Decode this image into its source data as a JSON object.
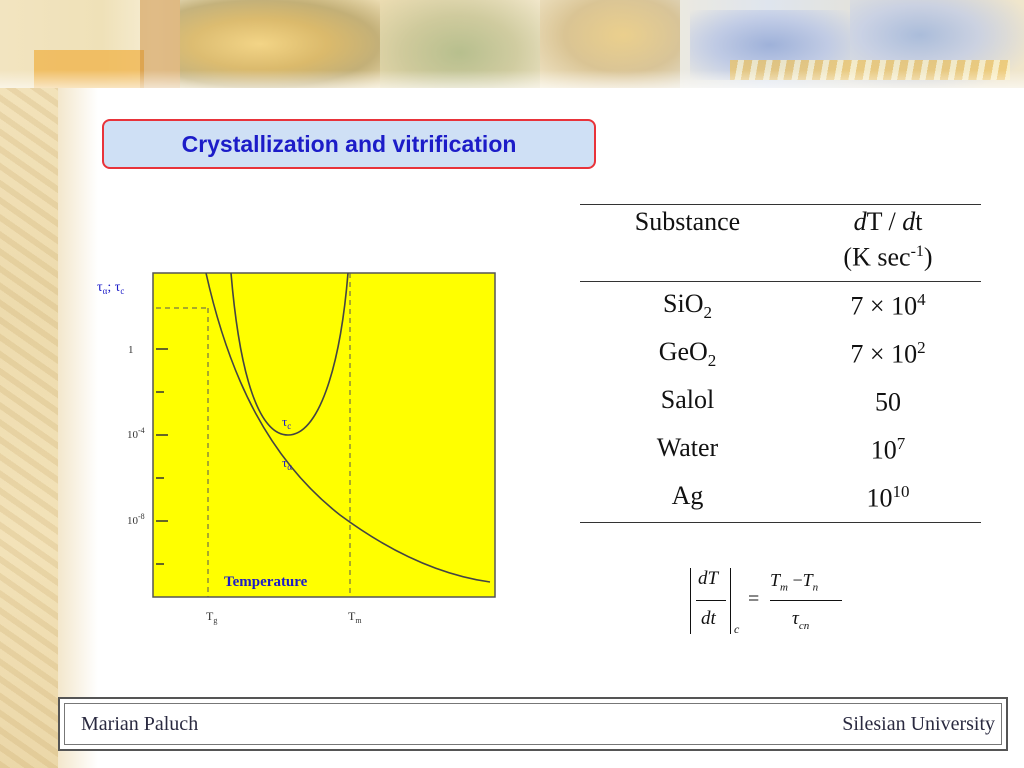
{
  "slide": {
    "title": "Crystallization and vitrification"
  },
  "chart_data": {
    "type": "line",
    "ylabel": "τα; τc",
    "y_tick_labels": [
      "1",
      "10-4",
      "10-8"
    ],
    "x_markers": [
      {
        "label": "Tg",
        "base": "T",
        "sub": "g"
      },
      {
        "label": "Tm",
        "base": "T",
        "sub": "m"
      }
    ],
    "inner_label": "Temperature",
    "series": [
      {
        "name": "τc",
        "shape": "U-shaped curve with minimum between Tg and Tm"
      },
      {
        "name": "τα",
        "shape": "monotonically decreasing with temperature"
      }
    ],
    "background_color": "#ffff00",
    "label_color": "#1c1cc8",
    "curve_color": "#333333"
  },
  "table": {
    "headers": {
      "substance": "Substance",
      "rate_line1": "dT / dt",
      "rate_line2_pre": "(K sec",
      "rate_line2_sup": "-1",
      "rate_line2_post": ")"
    },
    "rows": [
      {
        "name_base": "SiO",
        "name_sub": "2",
        "value_base": "7 × 10",
        "value_sup": "4"
      },
      {
        "name_base": "GeO",
        "name_sub": "2",
        "value_base": "7 × 10",
        "value_sup": "2"
      },
      {
        "name_base": "Salol",
        "name_sub": "",
        "value_base": "50",
        "value_sup": ""
      },
      {
        "name_base": "Water",
        "name_sub": "",
        "value_base": "10",
        "value_sup": "7"
      },
      {
        "name_base": "Ag",
        "name_sub": "",
        "value_base": "10",
        "value_sup": "10"
      }
    ]
  },
  "formula": {
    "lhs_num": "dT",
    "lhs_den": "dt",
    "lhs_sub": "c",
    "equals": "=",
    "rhs_num_T1": "T",
    "rhs_num_s1": "m",
    "rhs_minus": " −",
    "rhs_num_T2": "T",
    "rhs_num_s2": "n",
    "rhs_den_tau": "τ",
    "rhs_den_sub": "cn"
  },
  "footer": {
    "author": "Marian Paluch",
    "institution": "Silesian University"
  }
}
